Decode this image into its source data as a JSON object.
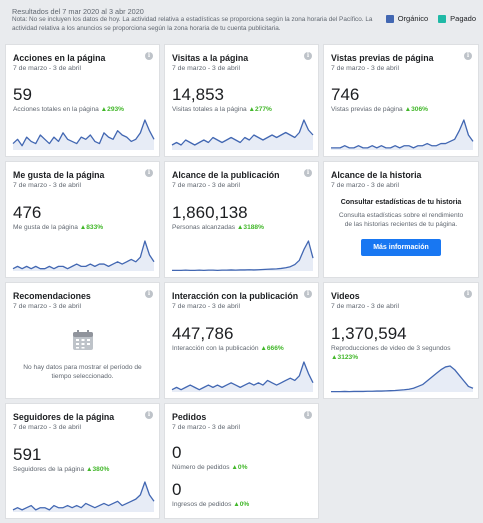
{
  "header": {
    "results": "Resultados del 7 mar 2020 al 3 abr 2020",
    "note": "Nota: No se incluyen los datos de hoy. La actividad relativa a estadísticas se proporciona según la zona horaria del Pacífico. La actividad relativa a los anuncios se proporciona según la zona horaria de tu cuenta publicitaria.",
    "legend": [
      {
        "label": "Orgánico",
        "color": "#4267b2"
      },
      {
        "label": "Pagado",
        "color": "#1fb9a6"
      }
    ]
  },
  "cards": {
    "actions": {
      "title": "Acciones en la página",
      "date": "7 de marzo - 3 de abril",
      "value": "59",
      "caption": "Acciones totales en la página",
      "change": "▲293%",
      "spark": [
        3,
        5,
        2,
        6,
        4,
        3,
        7,
        5,
        3,
        6,
        4,
        8,
        5,
        4,
        3,
        6,
        5,
        7,
        4,
        3,
        8,
        6,
        5,
        9,
        7,
        6,
        4,
        5,
        8,
        14,
        9,
        5
      ]
    },
    "visits": {
      "title": "Visitas a la página",
      "date": "7 de marzo - 3 de abril",
      "value": "14,853",
      "caption": "Visitas totales a la página",
      "change": "▲277%",
      "spark": [
        2,
        3,
        2,
        4,
        3,
        2,
        3,
        4,
        3,
        5,
        4,
        3,
        4,
        5,
        4,
        3,
        5,
        4,
        6,
        5,
        4,
        5,
        6,
        5,
        6,
        7,
        6,
        5,
        7,
        12,
        8,
        6
      ]
    },
    "previews": {
      "title": "Vistas previas de página",
      "date": "7 de marzo - 3 de abril",
      "value": "746",
      "caption": "Vistas previas de página",
      "change": "▲306%",
      "spark": [
        1,
        1,
        1,
        2,
        1,
        1,
        2,
        1,
        1,
        2,
        1,
        2,
        1,
        1,
        2,
        1,
        2,
        2,
        1,
        2,
        2,
        3,
        2,
        2,
        3,
        3,
        4,
        5,
        9,
        14,
        7,
        4
      ]
    },
    "likes": {
      "title": "Me gusta de la página",
      "date": "7 de marzo - 3 de abril",
      "value": "476",
      "caption": "Me gusta de la página",
      "change": "▲833%",
      "spark": [
        1,
        2,
        1,
        2,
        1,
        2,
        1,
        1,
        2,
        1,
        2,
        2,
        1,
        2,
        3,
        2,
        2,
        3,
        2,
        3,
        3,
        2,
        3,
        4,
        3,
        4,
        5,
        4,
        6,
        13,
        7,
        4
      ]
    },
    "reach": {
      "title": "Alcance de la publicación",
      "date": "7 de marzo - 3 de abril",
      "value": "1,860,138",
      "caption": "Personas alcanzadas",
      "change": "▲3188%",
      "spark": [
        0.3,
        0.3,
        0.3,
        0.4,
        0.3,
        0.3,
        0.4,
        0.3,
        0.4,
        0.4,
        0.3,
        0.4,
        0.4,
        0.5,
        0.4,
        0.5,
        0.5,
        0.6,
        0.5,
        0.6,
        0.7,
        0.8,
        0.9,
        1.0,
        1.2,
        1.5,
        2.0,
        3.0,
        5.0,
        10,
        14,
        6
      ]
    },
    "story": {
      "title": "Alcance de la historia",
      "date": "7 de marzo - 3 de abril",
      "heading": "Consultar estadísticas de tu historia",
      "text": "Consulta estadísticas sobre el rendimiento de las historias recientes de tu página.",
      "button": "Más información"
    },
    "recommendations": {
      "title": "Recomendaciones",
      "date": "7 de marzo - 3 de abril",
      "empty": "No hay datos para mostrar el período de tiempo seleccionado."
    },
    "engagement": {
      "title": "Interacción con la publicación",
      "date": "7 de marzo - 3 de abril",
      "value": "447,786",
      "caption": "Interacción con la publicación",
      "change": "▲666%",
      "spark": [
        1,
        2,
        1,
        2,
        3,
        2,
        1,
        2,
        3,
        2,
        3,
        2,
        3,
        4,
        3,
        2,
        3,
        4,
        3,
        4,
        3,
        5,
        4,
        3,
        4,
        5,
        6,
        5,
        7,
        13,
        8,
        4
      ]
    },
    "videos": {
      "title": "Videos",
      "date": "7 de marzo - 3 de abril",
      "value": "1,370,594",
      "caption": "Reproducciones de video de 3 segundos",
      "change": "▲3123%",
      "spark": [
        0.2,
        0.2,
        0.2,
        0.3,
        0.2,
        0.3,
        0.3,
        0.3,
        0.4,
        0.4,
        0.5,
        0.5,
        0.6,
        0.7,
        0.8,
        1.0,
        1.2,
        1.5,
        2.0,
        3.0,
        4.0,
        6.0,
        8.0,
        10,
        12,
        13.5,
        14,
        12,
        9,
        6,
        3,
        2
      ]
    },
    "followers": {
      "title": "Seguidores de la página",
      "date": "7 de marzo - 3 de abril",
      "value": "591",
      "caption": "Seguidores de la página",
      "change": "▲380%",
      "spark": [
        1,
        2,
        1,
        2,
        3,
        1,
        2,
        2,
        1,
        3,
        2,
        2,
        3,
        2,
        3,
        2,
        4,
        3,
        2,
        3,
        4,
        3,
        4,
        5,
        3,
        4,
        5,
        6,
        8,
        14,
        8,
        5
      ]
    },
    "orders": {
      "title": "Pedidos",
      "date": "7 de marzo - 3 de abril",
      "value1": "0",
      "caption1": "Número de pedidos",
      "change1": "▲0%",
      "value2": "0",
      "caption2": "Ingresos de pedidos",
      "change2": "▲0%"
    }
  },
  "colors": {
    "line": "#4267b2",
    "fill": "#e7ecf6",
    "up": "#42b72a"
  }
}
